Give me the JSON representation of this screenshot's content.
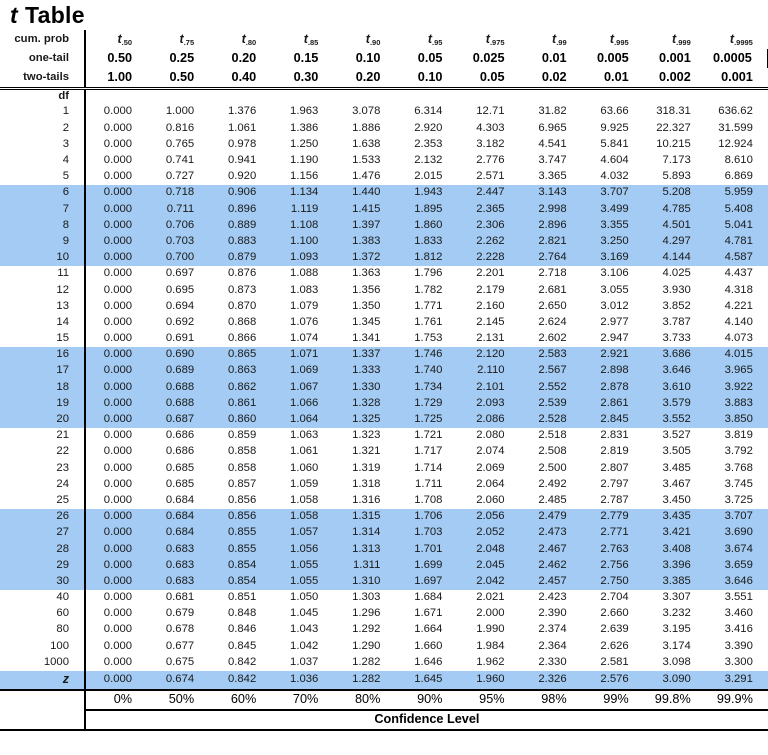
{
  "title": {
    "symbol": "t",
    "text": "Table"
  },
  "colors": {
    "highlight_blue": "#A3CBF3",
    "text": "#000000",
    "line": "#000000"
  },
  "header": {
    "cum_prob_label": "cum. prob",
    "t_symbol": "t",
    "t_subscripts": [
      ".50",
      ".75",
      ".80",
      ".85",
      ".90",
      ".95",
      ".975",
      ".99",
      ".995",
      ".999",
      ".9995"
    ],
    "one_tail_label": "one-tail",
    "one_tail": [
      "0.50",
      "0.25",
      "0.20",
      "0.15",
      "0.10",
      "0.05",
      "0.025",
      "0.01",
      "0.005",
      "0.001",
      "0.0005"
    ],
    "two_tails_label": "two-tails",
    "two_tails": [
      "1.00",
      "0.50",
      "0.40",
      "0.30",
      "0.20",
      "0.10",
      "0.05",
      "0.02",
      "0.01",
      "0.002",
      "0.001"
    ],
    "df_label": "df"
  },
  "table": {
    "rows": [
      {
        "df": "1",
        "highlight": false,
        "values": [
          "0.000",
          "1.000",
          "1.376",
          "1.963",
          "3.078",
          "6.314",
          "12.71",
          "31.82",
          "63.66",
          "318.31",
          "636.62"
        ]
      },
      {
        "df": "2",
        "highlight": false,
        "values": [
          "0.000",
          "0.816",
          "1.061",
          "1.386",
          "1.886",
          "2.920",
          "4.303",
          "6.965",
          "9.925",
          "22.327",
          "31.599"
        ]
      },
      {
        "df": "3",
        "highlight": false,
        "values": [
          "0.000",
          "0.765",
          "0.978",
          "1.250",
          "1.638",
          "2.353",
          "3.182",
          "4.541",
          "5.841",
          "10.215",
          "12.924"
        ]
      },
      {
        "df": "4",
        "highlight": false,
        "values": [
          "0.000",
          "0.741",
          "0.941",
          "1.190",
          "1.533",
          "2.132",
          "2.776",
          "3.747",
          "4.604",
          "7.173",
          "8.610"
        ]
      },
      {
        "df": "5",
        "highlight": false,
        "values": [
          "0.000",
          "0.727",
          "0.920",
          "1.156",
          "1.476",
          "2.015",
          "2.571",
          "3.365",
          "4.032",
          "5.893",
          "6.869"
        ]
      },
      {
        "df": "6",
        "highlight": true,
        "values": [
          "0.000",
          "0.718",
          "0.906",
          "1.134",
          "1.440",
          "1.943",
          "2.447",
          "3.143",
          "3.707",
          "5.208",
          "5.959"
        ]
      },
      {
        "df": "7",
        "highlight": true,
        "values": [
          "0.000",
          "0.711",
          "0.896",
          "1.119",
          "1.415",
          "1.895",
          "2.365",
          "2.998",
          "3.499",
          "4.785",
          "5.408"
        ]
      },
      {
        "df": "8",
        "highlight": true,
        "values": [
          "0.000",
          "0.706",
          "0.889",
          "1.108",
          "1.397",
          "1.860",
          "2.306",
          "2.896",
          "3.355",
          "4.501",
          "5.041"
        ]
      },
      {
        "df": "9",
        "highlight": true,
        "values": [
          "0.000",
          "0.703",
          "0.883",
          "1.100",
          "1.383",
          "1.833",
          "2.262",
          "2.821",
          "3.250",
          "4.297",
          "4.781"
        ]
      },
      {
        "df": "10",
        "highlight": true,
        "values": [
          "0.000",
          "0.700",
          "0.879",
          "1.093",
          "1.372",
          "1.812",
          "2.228",
          "2.764",
          "3.169",
          "4.144",
          "4.587"
        ]
      },
      {
        "df": "11",
        "highlight": false,
        "values": [
          "0.000",
          "0.697",
          "0.876",
          "1.088",
          "1.363",
          "1.796",
          "2.201",
          "2.718",
          "3.106",
          "4.025",
          "4.437"
        ]
      },
      {
        "df": "12",
        "highlight": false,
        "values": [
          "0.000",
          "0.695",
          "0.873",
          "1.083",
          "1.356",
          "1.782",
          "2.179",
          "2.681",
          "3.055",
          "3.930",
          "4.318"
        ]
      },
      {
        "df": "13",
        "highlight": false,
        "values": [
          "0.000",
          "0.694",
          "0.870",
          "1.079",
          "1.350",
          "1.771",
          "2.160",
          "2.650",
          "3.012",
          "3.852",
          "4.221"
        ]
      },
      {
        "df": "14",
        "highlight": false,
        "values": [
          "0.000",
          "0.692",
          "0.868",
          "1.076",
          "1.345",
          "1.761",
          "2.145",
          "2.624",
          "2.977",
          "3.787",
          "4.140"
        ]
      },
      {
        "df": "15",
        "highlight": false,
        "values": [
          "0.000",
          "0.691",
          "0.866",
          "1.074",
          "1.341",
          "1.753",
          "2.131",
          "2.602",
          "2.947",
          "3.733",
          "4.073"
        ]
      },
      {
        "df": "16",
        "highlight": true,
        "values": [
          "0.000",
          "0.690",
          "0.865",
          "1.071",
          "1.337",
          "1.746",
          "2.120",
          "2.583",
          "2.921",
          "3.686",
          "4.015"
        ]
      },
      {
        "df": "17",
        "highlight": true,
        "values": [
          "0.000",
          "0.689",
          "0.863",
          "1.069",
          "1.333",
          "1.740",
          "2.110",
          "2.567",
          "2.898",
          "3.646",
          "3.965"
        ]
      },
      {
        "df": "18",
        "highlight": true,
        "values": [
          "0.000",
          "0.688",
          "0.862",
          "1.067",
          "1.330",
          "1.734",
          "2.101",
          "2.552",
          "2.878",
          "3.610",
          "3.922"
        ]
      },
      {
        "df": "19",
        "highlight": true,
        "values": [
          "0.000",
          "0.688",
          "0.861",
          "1.066",
          "1.328",
          "1.729",
          "2.093",
          "2.539",
          "2.861",
          "3.579",
          "3.883"
        ]
      },
      {
        "df": "20",
        "highlight": true,
        "values": [
          "0.000",
          "0.687",
          "0.860",
          "1.064",
          "1.325",
          "1.725",
          "2.086",
          "2.528",
          "2.845",
          "3.552",
          "3.850"
        ]
      },
      {
        "df": "21",
        "highlight": false,
        "values": [
          "0.000",
          "0.686",
          "0.859",
          "1.063",
          "1.323",
          "1.721",
          "2.080",
          "2.518",
          "2.831",
          "3.527",
          "3.819"
        ]
      },
      {
        "df": "22",
        "highlight": false,
        "values": [
          "0.000",
          "0.686",
          "0.858",
          "1.061",
          "1.321",
          "1.717",
          "2.074",
          "2.508",
          "2.819",
          "3.505",
          "3.792"
        ]
      },
      {
        "df": "23",
        "highlight": false,
        "values": [
          "0.000",
          "0.685",
          "0.858",
          "1.060",
          "1.319",
          "1.714",
          "2.069",
          "2.500",
          "2.807",
          "3.485",
          "3.768"
        ]
      },
      {
        "df": "24",
        "highlight": false,
        "values": [
          "0.000",
          "0.685",
          "0.857",
          "1.059",
          "1.318",
          "1.711",
          "2.064",
          "2.492",
          "2.797",
          "3.467",
          "3.745"
        ]
      },
      {
        "df": "25",
        "highlight": false,
        "values": [
          "0.000",
          "0.684",
          "0.856",
          "1.058",
          "1.316",
          "1.708",
          "2.060",
          "2.485",
          "2.787",
          "3.450",
          "3.725"
        ]
      },
      {
        "df": "26",
        "highlight": true,
        "values": [
          "0.000",
          "0.684",
          "0.856",
          "1.058",
          "1.315",
          "1.706",
          "2.056",
          "2.479",
          "2.779",
          "3.435",
          "3.707"
        ]
      },
      {
        "df": "27",
        "highlight": true,
        "values": [
          "0.000",
          "0.684",
          "0.855",
          "1.057",
          "1.314",
          "1.703",
          "2.052",
          "2.473",
          "2.771",
          "3.421",
          "3.690"
        ]
      },
      {
        "df": "28",
        "highlight": true,
        "values": [
          "0.000",
          "0.683",
          "0.855",
          "1.056",
          "1.313",
          "1.701",
          "2.048",
          "2.467",
          "2.763",
          "3.408",
          "3.674"
        ]
      },
      {
        "df": "29",
        "highlight": true,
        "values": [
          "0.000",
          "0.683",
          "0.854",
          "1.055",
          "1.311",
          "1.699",
          "2.045",
          "2.462",
          "2.756",
          "3.396",
          "3.659"
        ]
      },
      {
        "df": "30",
        "highlight": true,
        "values": [
          "0.000",
          "0.683",
          "0.854",
          "1.055",
          "1.310",
          "1.697",
          "2.042",
          "2.457",
          "2.750",
          "3.385",
          "3.646"
        ]
      },
      {
        "df": "40",
        "highlight": false,
        "values": [
          "0.000",
          "0.681",
          "0.851",
          "1.050",
          "1.303",
          "1.684",
          "2.021",
          "2.423",
          "2.704",
          "3.307",
          "3.551"
        ]
      },
      {
        "df": "60",
        "highlight": false,
        "values": [
          "0.000",
          "0.679",
          "0.848",
          "1.045",
          "1.296",
          "1.671",
          "2.000",
          "2.390",
          "2.660",
          "3.232",
          "3.460"
        ]
      },
      {
        "df": "80",
        "highlight": false,
        "values": [
          "0.000",
          "0.678",
          "0.846",
          "1.043",
          "1.292",
          "1.664",
          "1.990",
          "2.374",
          "2.639",
          "3.195",
          "3.416"
        ]
      },
      {
        "df": "100",
        "highlight": false,
        "values": [
          "0.000",
          "0.677",
          "0.845",
          "1.042",
          "1.290",
          "1.660",
          "1.984",
          "2.364",
          "2.626",
          "3.174",
          "3.390"
        ]
      },
      {
        "df": "1000",
        "highlight": false,
        "values": [
          "0.000",
          "0.675",
          "0.842",
          "1.037",
          "1.282",
          "1.646",
          "1.962",
          "2.330",
          "2.581",
          "3.098",
          "3.300"
        ]
      }
    ],
    "z_row": {
      "label": "z",
      "highlight": true,
      "values": [
        "0.000",
        "0.674",
        "0.842",
        "1.036",
        "1.282",
        "1.645",
        "1.960",
        "2.326",
        "2.576",
        "3.090",
        "3.291"
      ]
    }
  },
  "footer": {
    "confidence_levels": [
      "0%",
      "50%",
      "60%",
      "70%",
      "80%",
      "90%",
      "95%",
      "98%",
      "99%",
      "99.8%",
      "99.9%"
    ],
    "confidence_label": "Confidence Level"
  }
}
